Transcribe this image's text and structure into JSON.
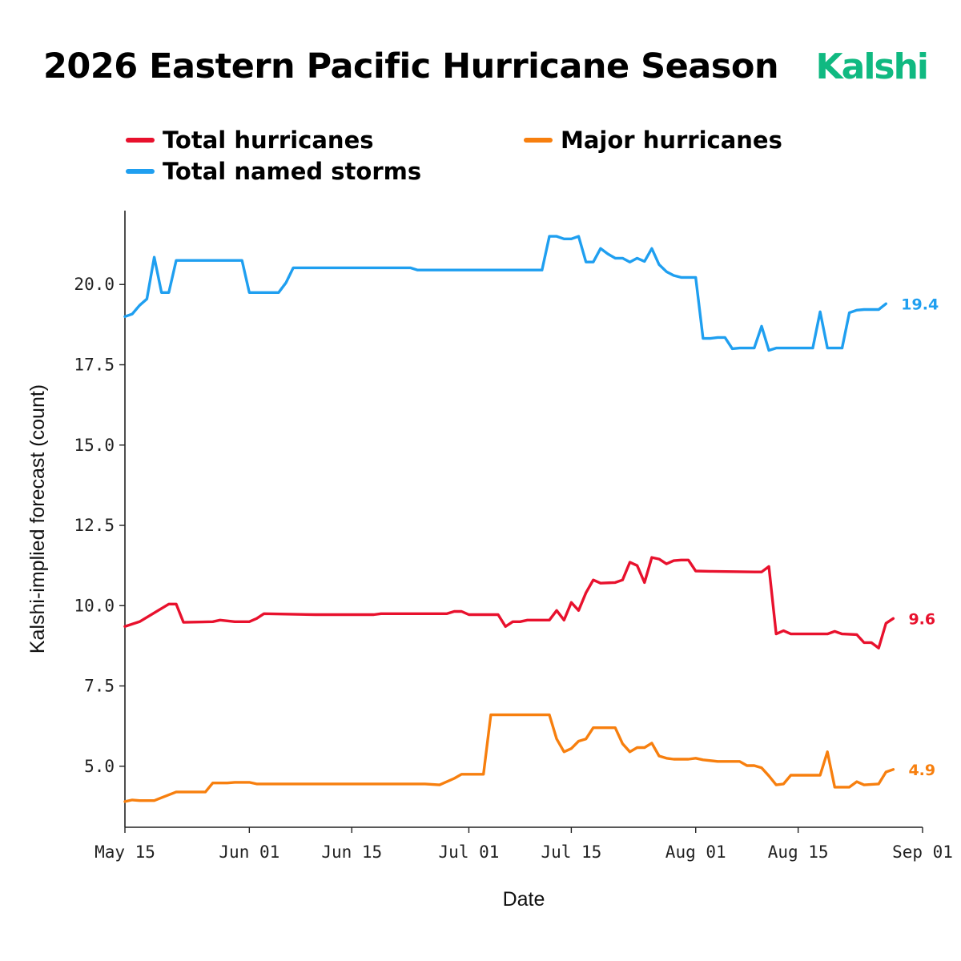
{
  "header": {
    "title": "2026 Eastern Pacific Hurricane Season",
    "brand": "Kalshi",
    "brand_color": "#10b981"
  },
  "chart_data": {
    "type": "line",
    "title": "2026 Eastern Pacific Hurricane Season",
    "xlabel": "Date",
    "ylabel": "Kalshi-implied forecast (count)",
    "xlim": [
      "2026-05-15",
      "2026-09-01"
    ],
    "ylim": [
      3.1,
      22.3
    ],
    "x_ticks": [
      "May 15",
      "Jun 01",
      "Jun 15",
      "Jul 01",
      "Jul 15",
      "Aug 01",
      "Aug 15",
      "Sep 01"
    ],
    "x_tick_dates": [
      "2026-05-15",
      "2026-06-01",
      "2026-06-15",
      "2026-07-01",
      "2026-07-15",
      "2026-08-01",
      "2026-08-15",
      "2026-09-01"
    ],
    "y_ticks": [
      "5.0",
      "7.5",
      "10.0",
      "12.5",
      "15.0",
      "17.5",
      "20.0"
    ],
    "y_tick_values": [
      5.0,
      7.5,
      10.0,
      12.5,
      15.0,
      17.5,
      20.0
    ],
    "grid": false,
    "legend_position": "top-left",
    "series": [
      {
        "name": "Total hurricanes",
        "color": "#e8112d",
        "end_label": "9.6",
        "points": [
          [
            "2026-05-15",
            9.35
          ],
          [
            "2026-05-17",
            9.5
          ],
          [
            "2026-05-21",
            10.05
          ],
          [
            "2026-05-22",
            10.05
          ],
          [
            "2026-05-23",
            9.48
          ],
          [
            "2026-05-27",
            9.5
          ],
          [
            "2026-05-28",
            9.55
          ],
          [
            "2026-05-30",
            9.5
          ],
          [
            "2026-06-01",
            9.5
          ],
          [
            "2026-06-02",
            9.6
          ],
          [
            "2026-06-03",
            9.75
          ],
          [
            "2026-06-10",
            9.72
          ],
          [
            "2026-06-18",
            9.72
          ],
          [
            "2026-06-19",
            9.75
          ],
          [
            "2026-06-28",
            9.75
          ],
          [
            "2026-06-29",
            9.82
          ],
          [
            "2026-06-30",
            9.82
          ],
          [
            "2026-07-01",
            9.72
          ],
          [
            "2026-07-05",
            9.72
          ],
          [
            "2026-07-06",
            9.35
          ],
          [
            "2026-07-07",
            9.5
          ],
          [
            "2026-07-08",
            9.5
          ],
          [
            "2026-07-09",
            9.55
          ],
          [
            "2026-07-12",
            9.55
          ],
          [
            "2026-07-13",
            9.85
          ],
          [
            "2026-07-14",
            9.55
          ],
          [
            "2026-07-15",
            10.1
          ],
          [
            "2026-07-16",
            9.85
          ],
          [
            "2026-07-17",
            10.4
          ],
          [
            "2026-07-18",
            10.8
          ],
          [
            "2026-07-19",
            10.7
          ],
          [
            "2026-07-21",
            10.72
          ],
          [
            "2026-07-22",
            10.8
          ],
          [
            "2026-07-23",
            11.35
          ],
          [
            "2026-07-24",
            11.25
          ],
          [
            "2026-07-25",
            10.72
          ],
          [
            "2026-07-26",
            11.5
          ],
          [
            "2026-07-27",
            11.45
          ],
          [
            "2026-07-28",
            11.3
          ],
          [
            "2026-07-29",
            11.4
          ],
          [
            "2026-07-30",
            11.42
          ],
          [
            "2026-07-31",
            11.42
          ],
          [
            "2026-08-01",
            11.08
          ],
          [
            "2026-08-03",
            11.07
          ],
          [
            "2026-08-09",
            11.05
          ],
          [
            "2026-08-10",
            11.05
          ],
          [
            "2026-08-11",
            11.22
          ],
          [
            "2026-08-12",
            9.12
          ],
          [
            "2026-08-13",
            9.22
          ],
          [
            "2026-08-14",
            9.12
          ],
          [
            "2026-08-19",
            9.12
          ],
          [
            "2026-08-20",
            9.2
          ],
          [
            "2026-08-21",
            9.12
          ],
          [
            "2026-08-23",
            9.1
          ],
          [
            "2026-08-24",
            8.85
          ],
          [
            "2026-08-25",
            8.85
          ],
          [
            "2026-08-26",
            8.68
          ],
          [
            "2026-08-27",
            9.45
          ],
          [
            "2026-08-28",
            9.6
          ]
        ]
      },
      {
        "name": "Major hurricanes",
        "color": "#f77f0e",
        "end_label": "4.9",
        "points": [
          [
            "2026-05-15",
            3.9
          ],
          [
            "2026-05-16",
            3.95
          ],
          [
            "2026-05-17",
            3.93
          ],
          [
            "2026-05-19",
            3.93
          ],
          [
            "2026-05-20",
            4.02
          ],
          [
            "2026-05-22",
            4.2
          ],
          [
            "2026-05-26",
            4.2
          ],
          [
            "2026-05-27",
            4.48
          ],
          [
            "2026-05-29",
            4.48
          ],
          [
            "2026-05-30",
            4.5
          ],
          [
            "2026-06-01",
            4.5
          ],
          [
            "2026-06-02",
            4.45
          ],
          [
            "2026-06-25",
            4.45
          ],
          [
            "2026-06-27",
            4.42
          ],
          [
            "2026-06-29",
            4.62
          ],
          [
            "2026-06-30",
            4.75
          ],
          [
            "2026-07-03",
            4.75
          ],
          [
            "2026-07-04",
            6.6
          ],
          [
            "2026-07-12",
            6.6
          ],
          [
            "2026-07-13",
            5.85
          ],
          [
            "2026-07-14",
            5.45
          ],
          [
            "2026-07-15",
            5.55
          ],
          [
            "2026-07-16",
            5.78
          ],
          [
            "2026-07-17",
            5.85
          ],
          [
            "2026-07-18",
            6.2
          ],
          [
            "2026-07-21",
            6.2
          ],
          [
            "2026-07-22",
            5.7
          ],
          [
            "2026-07-23",
            5.45
          ],
          [
            "2026-07-24",
            5.58
          ],
          [
            "2026-07-25",
            5.58
          ],
          [
            "2026-07-26",
            5.72
          ],
          [
            "2026-07-27",
            5.32
          ],
          [
            "2026-07-28",
            5.25
          ],
          [
            "2026-07-29",
            5.22
          ],
          [
            "2026-07-31",
            5.22
          ],
          [
            "2026-08-01",
            5.25
          ],
          [
            "2026-08-02",
            5.2
          ],
          [
            "2026-08-04",
            5.15
          ],
          [
            "2026-08-07",
            5.15
          ],
          [
            "2026-08-08",
            5.02
          ],
          [
            "2026-08-09",
            5.02
          ],
          [
            "2026-08-10",
            4.95
          ],
          [
            "2026-08-11",
            4.7
          ],
          [
            "2026-08-12",
            4.42
          ],
          [
            "2026-08-13",
            4.45
          ],
          [
            "2026-08-14",
            4.72
          ],
          [
            "2026-08-18",
            4.72
          ],
          [
            "2026-08-19",
            5.45
          ],
          [
            "2026-08-20",
            4.35
          ],
          [
            "2026-08-22",
            4.35
          ],
          [
            "2026-08-23",
            4.52
          ],
          [
            "2026-08-24",
            4.42
          ],
          [
            "2026-08-26",
            4.45
          ],
          [
            "2026-08-27",
            4.82
          ],
          [
            "2026-08-28",
            4.9
          ]
        ]
      },
      {
        "name": "Total named storms",
        "color": "#1f9ff0",
        "end_label": "19.4",
        "points": [
          [
            "2026-05-15",
            19.0
          ],
          [
            "2026-05-16",
            19.08
          ],
          [
            "2026-05-17",
            19.35
          ],
          [
            "2026-05-18",
            19.55
          ],
          [
            "2026-05-19",
            20.85
          ],
          [
            "2026-05-20",
            19.75
          ],
          [
            "2026-05-21",
            19.75
          ],
          [
            "2026-05-22",
            20.75
          ],
          [
            "2026-05-31",
            20.75
          ],
          [
            "2026-06-01",
            19.75
          ],
          [
            "2026-06-05",
            19.75
          ],
          [
            "2026-06-06",
            20.05
          ],
          [
            "2026-06-07",
            20.52
          ],
          [
            "2026-06-23",
            20.52
          ],
          [
            "2026-06-24",
            20.45
          ],
          [
            "2026-07-11",
            20.45
          ],
          [
            "2026-07-12",
            21.5
          ],
          [
            "2026-07-13",
            21.5
          ],
          [
            "2026-07-14",
            21.42
          ],
          [
            "2026-07-15",
            21.42
          ],
          [
            "2026-07-16",
            21.5
          ],
          [
            "2026-07-17",
            20.7
          ],
          [
            "2026-07-18",
            20.7
          ],
          [
            "2026-07-19",
            21.12
          ],
          [
            "2026-07-20",
            20.95
          ],
          [
            "2026-07-21",
            20.82
          ],
          [
            "2026-07-22",
            20.82
          ],
          [
            "2026-07-23",
            20.7
          ],
          [
            "2026-07-24",
            20.82
          ],
          [
            "2026-07-25",
            20.72
          ],
          [
            "2026-07-26",
            21.12
          ],
          [
            "2026-07-27",
            20.62
          ],
          [
            "2026-07-28",
            20.4
          ],
          [
            "2026-07-29",
            20.28
          ],
          [
            "2026-07-30",
            20.22
          ],
          [
            "2026-08-01",
            20.22
          ],
          [
            "2026-08-02",
            18.32
          ],
          [
            "2026-08-03",
            18.32
          ],
          [
            "2026-08-04",
            18.35
          ],
          [
            "2026-08-05",
            18.35
          ],
          [
            "2026-08-06",
            18.0
          ],
          [
            "2026-08-07",
            18.02
          ],
          [
            "2026-08-09",
            18.02
          ],
          [
            "2026-08-10",
            18.7
          ],
          [
            "2026-08-11",
            17.95
          ],
          [
            "2026-08-12",
            18.02
          ],
          [
            "2026-08-17",
            18.02
          ],
          [
            "2026-08-18",
            19.15
          ],
          [
            "2026-08-19",
            18.02
          ],
          [
            "2026-08-21",
            18.02
          ],
          [
            "2026-08-22",
            19.12
          ],
          [
            "2026-08-23",
            19.2
          ],
          [
            "2026-08-24",
            19.22
          ],
          [
            "2026-08-26",
            19.22
          ],
          [
            "2026-08-27",
            19.4
          ]
        ]
      }
    ]
  }
}
